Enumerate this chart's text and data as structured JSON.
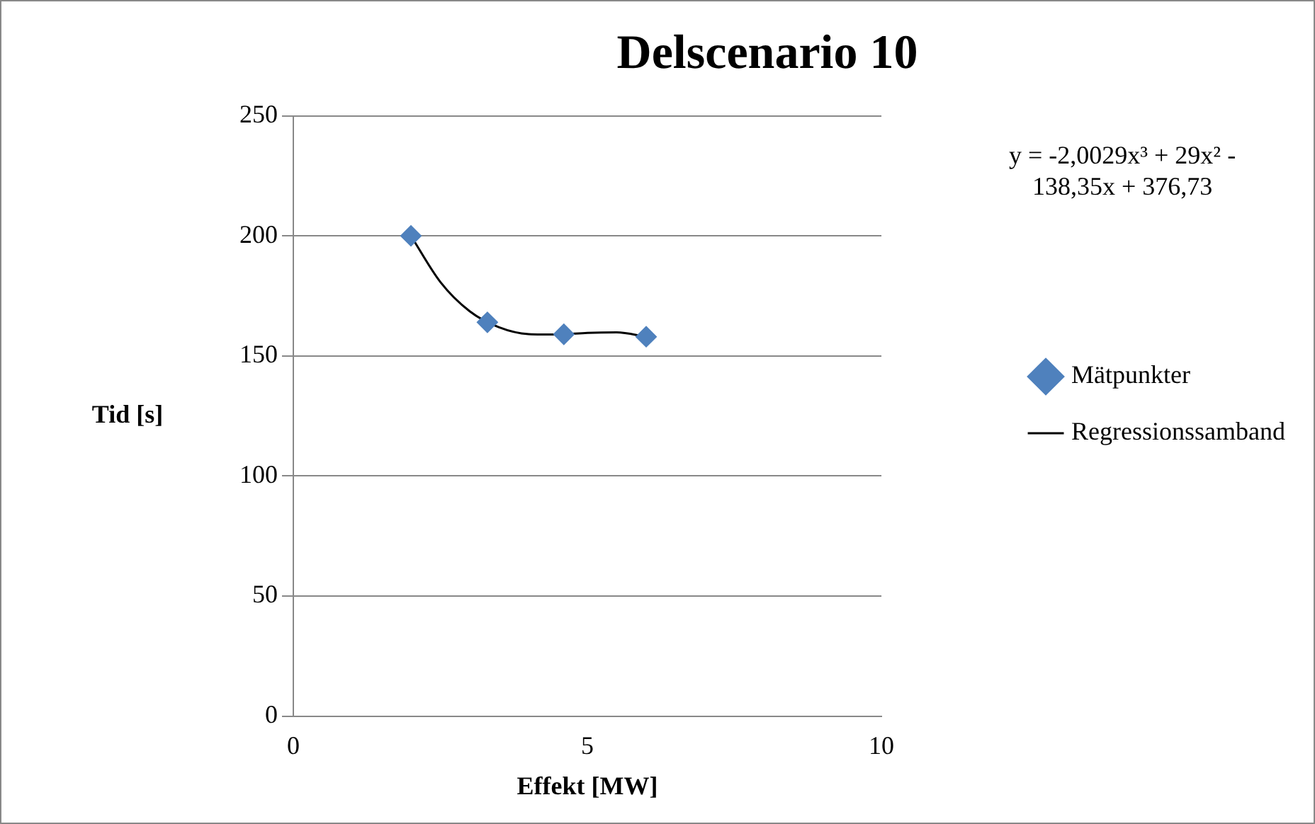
{
  "chart_data": {
    "type": "scatter",
    "title": "Delscenario 10",
    "xlabel": "Effekt [MW]",
    "ylabel": "Tid [s]",
    "annotations": [
      "y = -2,0029x³ + 29x² - 138,35x + 376,73"
    ],
    "xlim": [
      0,
      10
    ],
    "xticks": [
      0,
      5,
      10
    ],
    "ylim": [
      0,
      250
    ],
    "yticks": [
      0,
      50,
      100,
      150,
      200,
      250
    ],
    "grid": "y",
    "legend": "right",
    "series": [
      {
        "name": "Mätpunkter",
        "type": "scatter",
        "color": "#4f81bd",
        "marker": "diamond",
        "x": [
          2,
          3.3,
          4.6,
          6
        ],
        "values": [
          200,
          164,
          159,
          158
        ]
      },
      {
        "name": "Regressionssamband",
        "type": "line",
        "color": "#000000",
        "marker": "none",
        "line_style": "solid",
        "x": [
          2,
          2.5,
          3,
          3.5,
          4,
          4.5,
          5,
          5.5,
          6
        ],
        "values": [
          200,
          180.8,
          168.6,
          161.9,
          159.1,
          158.9,
          159.6,
          159.8,
          158
        ]
      }
    ]
  }
}
